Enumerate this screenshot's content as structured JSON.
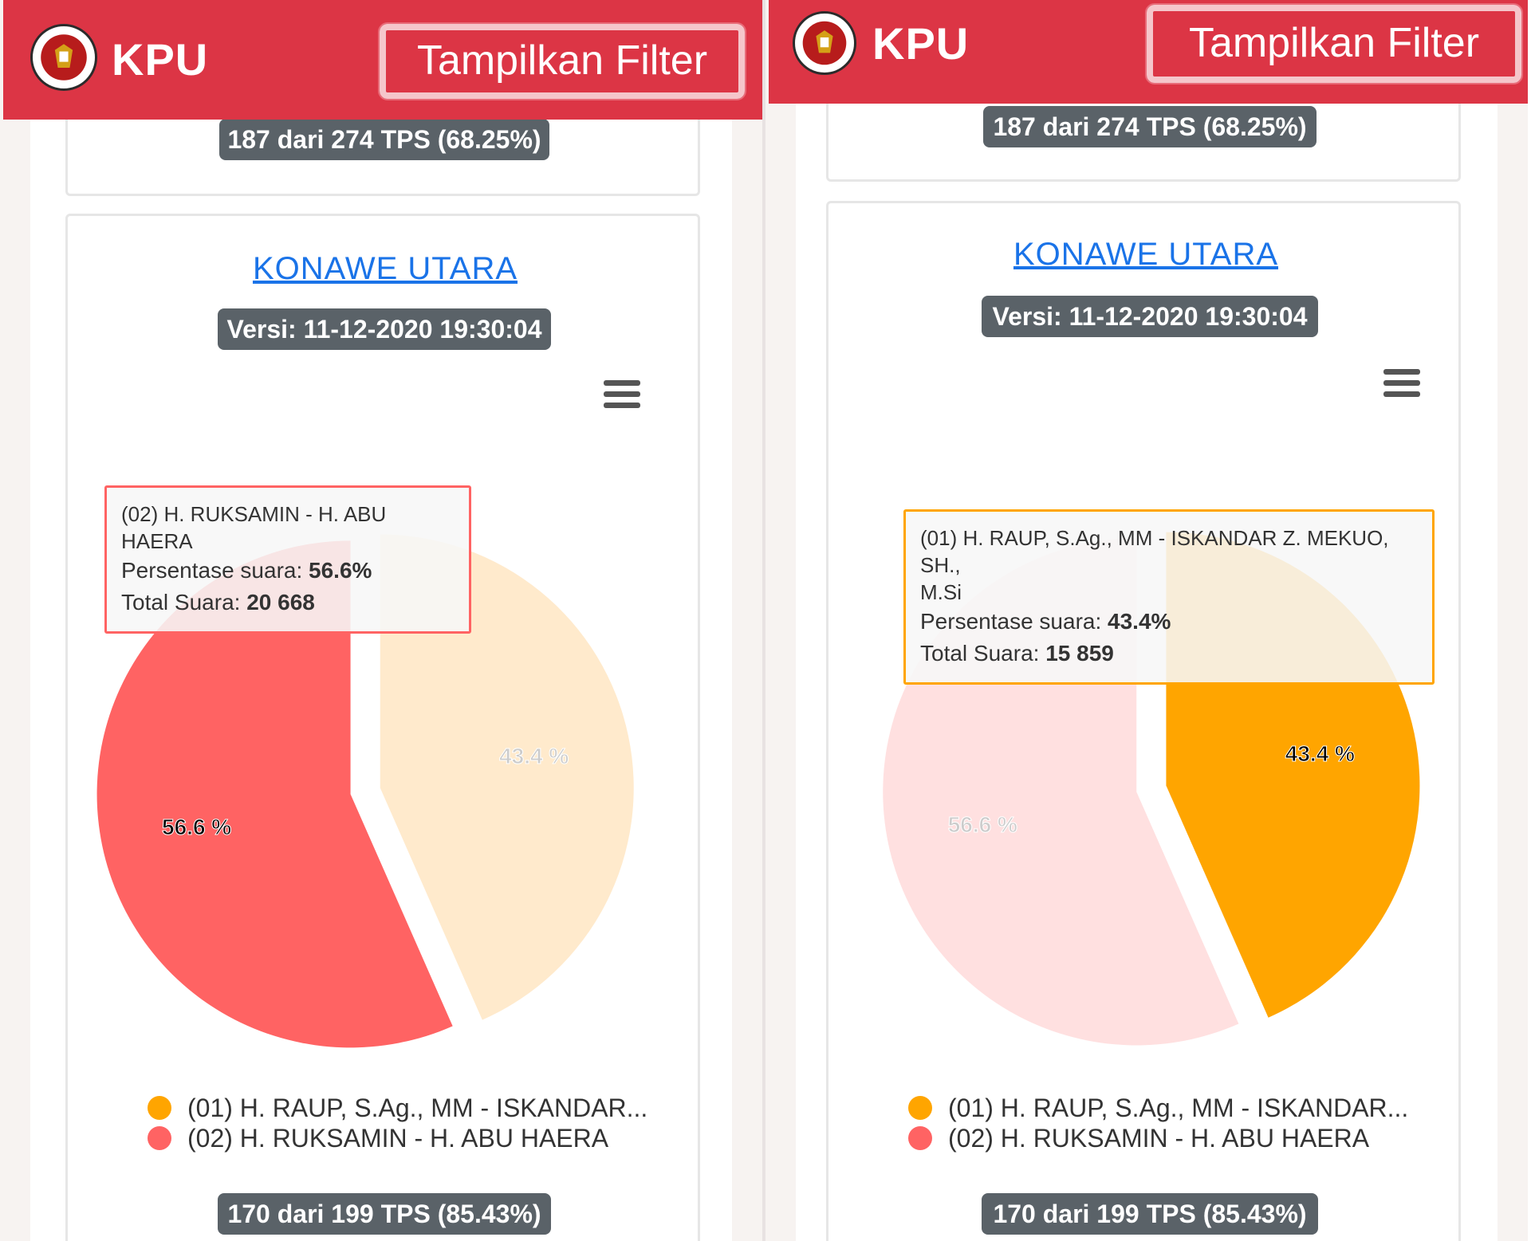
{
  "header": {
    "brand": "KPU",
    "filter_button": "Tampilkan Filter"
  },
  "colors": {
    "header_red": "#dc3545",
    "candidate_01": "#FFA500",
    "candidate_02": "#FF6363",
    "badge": "#5a6268",
    "link": "#1a73e8"
  },
  "icons": {
    "logo": "kpu-logo-icon",
    "menu": "hamburger-menu-icon"
  },
  "previous_card": {
    "tps_badge": "187 dari 274 TPS (68.25%)"
  },
  "card": {
    "region": "KONAWE UTARA",
    "version": "Versi: 11-12-2020 19:30:04",
    "tps_badge": "170 dari 199 TPS (85.43%)"
  },
  "legend": [
    "(01) H. RAUP, S.Ag., MM - ISKANDAR...",
    "(02) H. RUKSAMIN - H. ABU HAERA"
  ],
  "tooltip_labels": {
    "percent": "Persentase suara: ",
    "total": "Total Suara: "
  },
  "left_view": {
    "hovered": "02",
    "tooltip": {
      "name": "(02) H. RUKSAMIN - H. ABU HAERA",
      "percent": "56.6%",
      "total": "20 668"
    }
  },
  "right_view": {
    "hovered": "01",
    "tooltip": {
      "name_line1": "(01) H. RAUP, S.Ag., MM - ISKANDAR Z. MEKUO, SH.,",
      "name_line2": "M.Si",
      "percent": "43.4%",
      "total": "15 859"
    }
  },
  "chart_data": {
    "type": "pie",
    "categories": [
      "(01) H. RAUP, S.Ag., MM - ISKANDAR Z. MEKUO, SH., M.Si",
      "(02) H. RUKSAMIN - H. ABU HAERA"
    ],
    "values": [
      43.4,
      56.6
    ],
    "totals": [
      15859,
      20668
    ],
    "data_labels": [
      "43.4 %",
      "56.6 %"
    ],
    "colors": [
      "#FFA500",
      "#FF6363"
    ]
  }
}
